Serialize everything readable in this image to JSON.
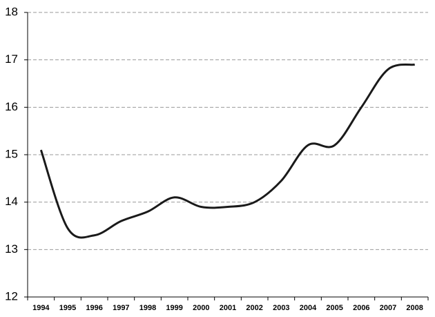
{
  "chart_data": {
    "type": "line",
    "categories": [
      "1994",
      "1995",
      "1996",
      "1997",
      "1998",
      "1999",
      "2000",
      "2001",
      "2002",
      "2003",
      "2004",
      "2005",
      "2006",
      "2007",
      "2008"
    ],
    "series": [
      {
        "color": "#1a1a1a",
        "values": [
          15.1,
          13.45,
          13.3,
          13.6,
          13.8,
          14.1,
          13.9,
          13.9,
          14.0,
          14.45,
          15.2,
          15.2,
          16.0,
          16.8,
          16.9
        ]
      }
    ],
    "ylim": [
      12,
      18
    ],
    "yticks": [
      12,
      13,
      14,
      15,
      16,
      17,
      18
    ],
    "grid": true
  }
}
